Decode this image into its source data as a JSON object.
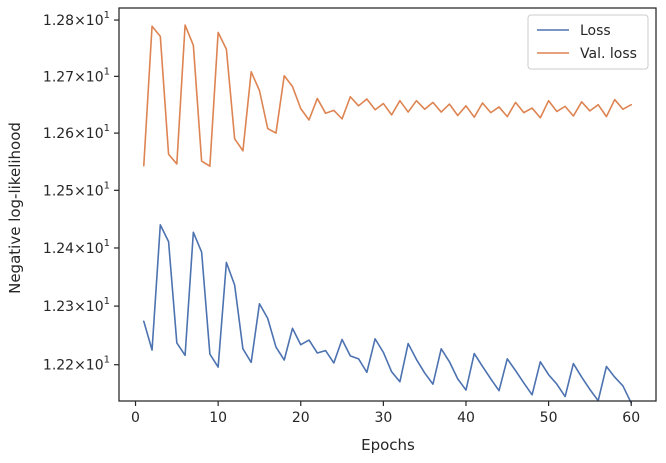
{
  "chart_data": {
    "type": "line",
    "title": "",
    "xlabel": "Epochs",
    "ylabel": "Negative log-likelihood",
    "xlim": [
      -2,
      63
    ],
    "ylim": [
      12.1385,
      12.8215
    ],
    "yscale": "log",
    "grid": false,
    "legend_position": "upper right",
    "x_ticks": [
      0,
      10,
      20,
      30,
      40,
      50,
      60
    ],
    "y_ticks": [
      {
        "value": 12.2,
        "mantissa": "1.22",
        "times": "×10",
        "exp": "1"
      },
      {
        "value": 12.3,
        "mantissa": "1.23",
        "times": "×10",
        "exp": "1"
      },
      {
        "value": 12.4,
        "mantissa": "1.24",
        "times": "×10",
        "exp": "1"
      },
      {
        "value": 12.5,
        "mantissa": "1.25",
        "times": "×10",
        "exp": "1"
      },
      {
        "value": 12.6,
        "mantissa": "1.26",
        "times": "×10",
        "exp": "1"
      },
      {
        "value": 12.7,
        "mantissa": "1.27",
        "times": "×10",
        "exp": "1"
      },
      {
        "value": 12.8,
        "mantissa": "1.28",
        "times": "×10",
        "exp": "1"
      }
    ],
    "x": [
      1,
      2,
      3,
      4,
      5,
      6,
      7,
      8,
      9,
      10,
      11,
      12,
      13,
      14,
      15,
      16,
      17,
      18,
      19,
      20,
      21,
      22,
      23,
      24,
      25,
      26,
      27,
      28,
      29,
      30,
      31,
      32,
      33,
      34,
      35,
      36,
      37,
      38,
      39,
      40,
      41,
      42,
      43,
      44,
      45,
      46,
      47,
      48,
      49,
      50,
      51,
      52,
      53,
      54,
      55,
      56,
      57,
      58,
      59,
      60
    ],
    "series": [
      {
        "name": "Loss",
        "color": "#4c72b0",
        "values": [
          12.274,
          12.225,
          12.44,
          12.411,
          12.237,
          12.216,
          12.427,
          12.393,
          12.218,
          12.196,
          12.375,
          12.336,
          12.227,
          12.204,
          12.304,
          12.279,
          12.23,
          12.208,
          12.262,
          12.234,
          12.242,
          12.22,
          12.224,
          12.203,
          12.243,
          12.215,
          12.21,
          12.187,
          12.244,
          12.221,
          12.188,
          12.171,
          12.236,
          12.209,
          12.186,
          12.167,
          12.227,
          12.205,
          12.176,
          12.157,
          12.219,
          12.197,
          12.176,
          12.156,
          12.21,
          12.19,
          12.169,
          12.149,
          12.205,
          12.183,
          12.167,
          12.146,
          12.202,
          12.179,
          12.158,
          12.139,
          12.197,
          12.179,
          12.164,
          12.135
        ]
      },
      {
        "name": "Val. loss",
        "color": "#dd8452",
        "values": [
          12.543,
          12.789,
          12.771,
          12.563,
          12.546,
          12.791,
          12.755,
          12.551,
          12.542,
          12.778,
          12.748,
          12.59,
          12.569,
          12.708,
          12.675,
          12.608,
          12.6,
          12.701,
          12.682,
          12.643,
          12.623,
          12.661,
          12.635,
          12.64,
          12.625,
          12.664,
          12.648,
          12.66,
          12.641,
          12.652,
          12.632,
          12.657,
          12.637,
          12.657,
          12.642,
          12.654,
          12.637,
          12.651,
          12.631,
          12.648,
          12.628,
          12.653,
          12.636,
          12.646,
          12.629,
          12.654,
          12.636,
          12.644,
          12.627,
          12.657,
          12.638,
          12.647,
          12.63,
          12.655,
          12.639,
          12.65,
          12.629,
          12.659,
          12.642,
          12.65
        ]
      }
    ]
  }
}
